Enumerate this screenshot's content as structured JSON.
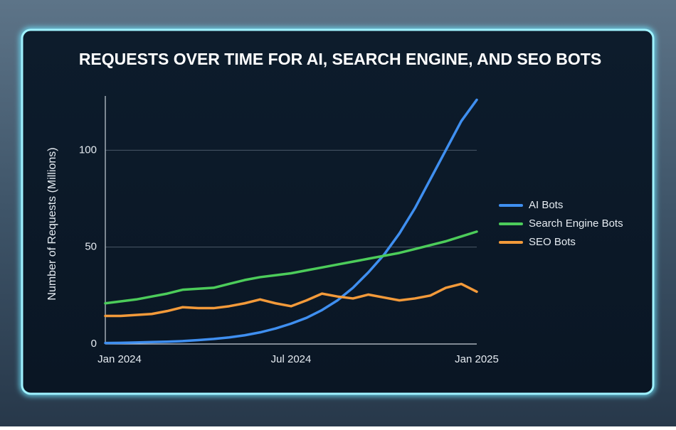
{
  "chart_data": {
    "type": "line",
    "title": "REQUESTS OVER TIME FOR AI, SEARCH ENGINE, AND SEO BOTS",
    "y_label": "Number of Requests (Millions)",
    "categories": [
      "Jan 2024",
      null,
      null,
      null,
      null,
      null,
      null,
      null,
      null,
      null,
      null,
      null,
      "Jul 2024",
      null,
      null,
      null,
      null,
      null,
      null,
      null,
      null,
      null,
      null,
      null,
      "Jan 2025"
    ],
    "series": [
      {
        "name": "AI Bots",
        "color": "#3f8ff0",
        "values": [
          0.5,
          0.6,
          0.8,
          1,
          1.2,
          1.5,
          2,
          2.6,
          3.4,
          4.5,
          6,
          8,
          10.5,
          13.5,
          17.5,
          22.5,
          29,
          37,
          46,
          57,
          70,
          85,
          100,
          115,
          126
        ]
      },
      {
        "name": "Search Engine Bots",
        "color": "#4ccc5a",
        "values": [
          21,
          22,
          23,
          24.5,
          26,
          28,
          28.5,
          29,
          31,
          33,
          34.5,
          35.5,
          36.5,
          38,
          39.5,
          41,
          42.5,
          44,
          45.5,
          47,
          49,
          51,
          53,
          55.5,
          58
        ]
      },
      {
        "name": "SEO Bots",
        "color": "#f39a3a",
        "values": [
          14.5,
          14.5,
          15,
          15.5,
          17,
          19,
          18.5,
          18.5,
          19.5,
          21,
          23,
          21,
          19.5,
          22.5,
          26,
          24.5,
          23.5,
          25.5,
          24,
          22.5,
          23.5,
          25,
          29,
          31,
          27
        ]
      }
    ],
    "ylim": [
      0,
      128
    ],
    "yticks": [
      0,
      50,
      100
    ],
    "grid": true,
    "legend": "right"
  }
}
